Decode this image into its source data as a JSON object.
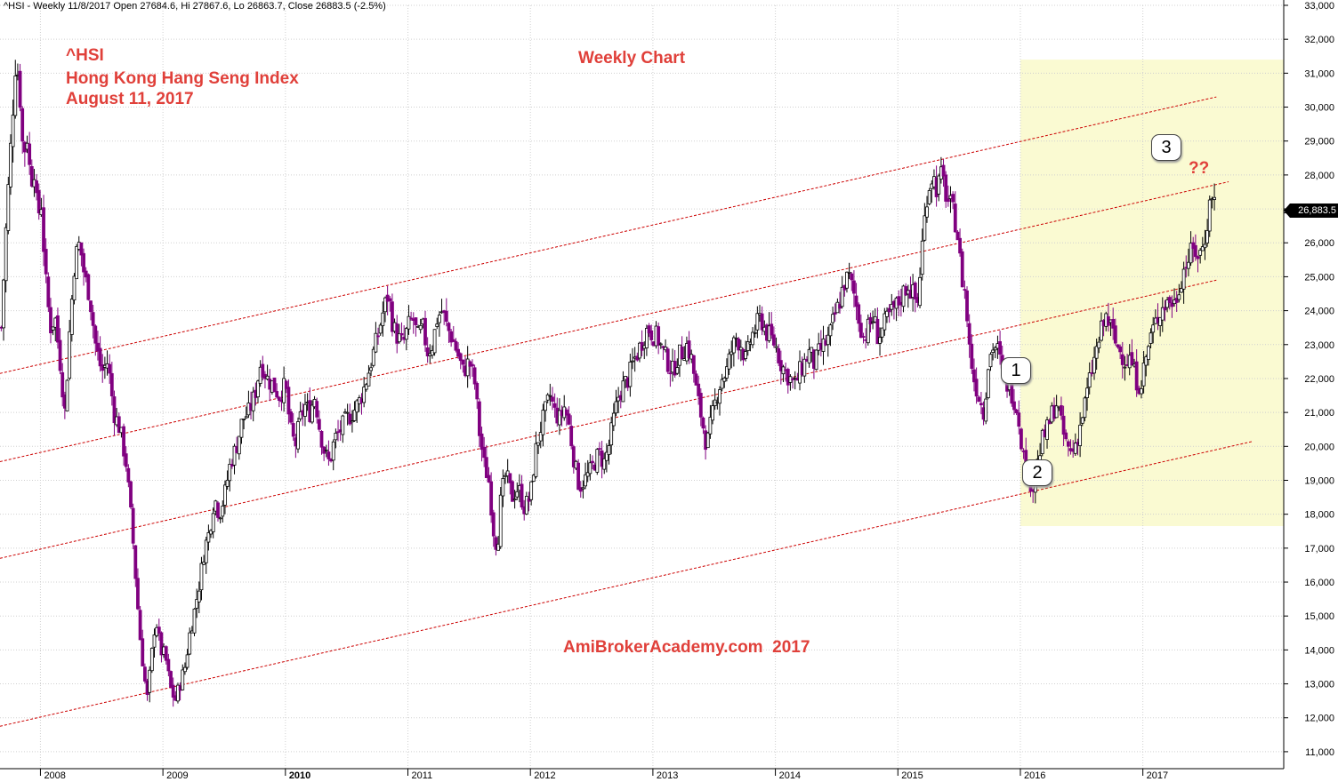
{
  "header_text": "^HSI - Weekly 11/8/2017 Open 27684.6, Hi 27867.6, Lo 26863.7, Close 26883.5 (-2.5%)",
  "title_lines": [
    "^HSI",
    "Hong Kong Hang Seng Index",
    "August 11, 2017"
  ],
  "subtitle": "Weekly Chart",
  "watermark": "AmiBrokerAcademy.com  2017",
  "last_price_label": "26,883.5",
  "question_label": "??",
  "colors": {
    "up": "#000000",
    "down": "#800080",
    "channel": "#cc0000",
    "highlight": "#fafad2",
    "title": "#e0403a"
  },
  "chart_data": {
    "type": "candlestick",
    "ylim": [
      10500,
      33000
    ],
    "xlim": [
      2007.67,
      2018.15
    ],
    "y_ticks": [
      "11,000",
      "12,000",
      "13,000",
      "14,000",
      "15,000",
      "16,000",
      "17,000",
      "18,000",
      "19,000",
      "20,000",
      "21,000",
      "22,000",
      "23,000",
      "24,000",
      "25,000",
      "26,000",
      "27,000",
      "28,000",
      "29,000",
      "30,000",
      "31,000",
      "32,000",
      "33,000"
    ],
    "y_tick_values": [
      11000,
      12000,
      13000,
      14000,
      15000,
      16000,
      17000,
      18000,
      19000,
      20000,
      21000,
      22000,
      23000,
      24000,
      25000,
      26000,
      27000,
      28000,
      29000,
      30000,
      31000,
      32000,
      33000
    ],
    "x_ticks": [
      "2008",
      "2009",
      "2010",
      "2011",
      "2012",
      "2013",
      "2014",
      "2015",
      "2016",
      "2017"
    ],
    "x_tick_values": [
      2008,
      2009,
      2010,
      2011,
      2012,
      2013,
      2014,
      2015,
      2016,
      2017
    ],
    "bold_x_tick": "2010",
    "close_path": [
      [
        2007.68,
        23500
      ],
      [
        2007.72,
        26500
      ],
      [
        2007.76,
        29000
      ],
      [
        2007.8,
        31500
      ],
      [
        2007.83,
        30500
      ],
      [
        2007.86,
        28500
      ],
      [
        2007.89,
        29200
      ],
      [
        2007.92,
        27800
      ],
      [
        2007.95,
        28200
      ],
      [
        2007.98,
        26500
      ],
      [
        2008.0,
        27600
      ],
      [
        2008.04,
        25000
      ],
      [
        2008.08,
        23500
      ],
      [
        2008.12,
        23800
      ],
      [
        2008.16,
        22500
      ],
      [
        2008.2,
        21000
      ],
      [
        2008.24,
        23500
      ],
      [
        2008.28,
        25500
      ],
      [
        2008.32,
        26000
      ],
      [
        2008.36,
        25000
      ],
      [
        2008.4,
        24500
      ],
      [
        2008.45,
        23000
      ],
      [
        2008.5,
        22200
      ],
      [
        2008.55,
        22500
      ],
      [
        2008.6,
        21000
      ],
      [
        2008.65,
        20500
      ],
      [
        2008.7,
        19500
      ],
      [
        2008.75,
        17500
      ],
      [
        2008.78,
        16000
      ],
      [
        2008.81,
        14500
      ],
      [
        2008.84,
        13500
      ],
      [
        2008.87,
        12500
      ],
      [
        2008.9,
        13500
      ],
      [
        2008.94,
        15000
      ],
      [
        2008.98,
        14000
      ],
      [
        2009.02,
        13800
      ],
      [
        2009.06,
        12900
      ],
      [
        2009.1,
        12500
      ],
      [
        2009.14,
        13000
      ],
      [
        2009.18,
        13500
      ],
      [
        2009.22,
        14500
      ],
      [
        2009.26,
        15200
      ],
      [
        2009.3,
        16000
      ],
      [
        2009.34,
        17000
      ],
      [
        2009.38,
        17500
      ],
      [
        2009.42,
        18500
      ],
      [
        2009.46,
        18000
      ],
      [
        2009.5,
        18500
      ],
      [
        2009.55,
        19500
      ],
      [
        2009.6,
        20000
      ],
      [
        2009.65,
        20800
      ],
      [
        2009.7,
        21000
      ],
      [
        2009.75,
        21500
      ],
      [
        2009.8,
        22500
      ],
      [
        2009.85,
        22000
      ],
      [
        2009.9,
        21800
      ],
      [
        2009.95,
        21500
      ],
      [
        2010.0,
        21800
      ],
      [
        2010.04,
        20500
      ],
      [
        2010.08,
        20000
      ],
      [
        2010.12,
        20800
      ],
      [
        2010.16,
        21200
      ],
      [
        2010.2,
        21000
      ],
      [
        2010.24,
        21500
      ],
      [
        2010.28,
        20500
      ],
      [
        2010.32,
        19800
      ],
      [
        2010.36,
        19500
      ],
      [
        2010.4,
        20200
      ],
      [
        2010.45,
        20500
      ],
      [
        2010.5,
        20800
      ],
      [
        2010.55,
        21000
      ],
      [
        2010.6,
        21300
      ],
      [
        2010.65,
        21800
      ],
      [
        2010.7,
        22500
      ],
      [
        2010.75,
        23200
      ],
      [
        2010.8,
        24000
      ],
      [
        2010.84,
        24500
      ],
      [
        2010.88,
        23500
      ],
      [
        2010.92,
        23200
      ],
      [
        2010.96,
        23000
      ],
      [
        2011.0,
        23500
      ],
      [
        2011.04,
        23800
      ],
      [
        2011.08,
        23200
      ],
      [
        2011.12,
        23500
      ],
      [
        2011.16,
        22800
      ],
      [
        2011.2,
        23000
      ],
      [
        2011.24,
        23800
      ],
      [
        2011.28,
        24000
      ],
      [
        2011.32,
        23500
      ],
      [
        2011.36,
        23200
      ],
      [
        2011.4,
        22800
      ],
      [
        2011.45,
        22200
      ],
      [
        2011.5,
        22500
      ],
      [
        2011.55,
        21800
      ],
      [
        2011.58,
        20500
      ],
      [
        2011.62,
        19500
      ],
      [
        2011.66,
        19000
      ],
      [
        2011.7,
        17500
      ],
      [
        2011.73,
        17000
      ],
      [
        2011.76,
        18500
      ],
      [
        2011.8,
        19200
      ],
      [
        2011.85,
        18500
      ],
      [
        2011.9,
        18800
      ],
      [
        2011.95,
        18200
      ],
      [
        2012.0,
        18500
      ],
      [
        2012.04,
        19800
      ],
      [
        2012.08,
        20500
      ],
      [
        2012.12,
        21000
      ],
      [
        2012.16,
        21500
      ],
      [
        2012.2,
        21000
      ],
      [
        2012.24,
        20800
      ],
      [
        2012.28,
        21200
      ],
      [
        2012.32,
        20500
      ],
      [
        2012.36,
        19500
      ],
      [
        2012.4,
        18800
      ],
      [
        2012.44,
        19000
      ],
      [
        2012.48,
        19200
      ],
      [
        2012.52,
        19500
      ],
      [
        2012.56,
        19800
      ],
      [
        2012.6,
        19500
      ],
      [
        2012.64,
        20000
      ],
      [
        2012.68,
        20800
      ],
      [
        2012.72,
        21500
      ],
      [
        2012.76,
        21800
      ],
      [
        2012.8,
        22000
      ],
      [
        2012.84,
        22500
      ],
      [
        2012.88,
        22800
      ],
      [
        2012.92,
        23200
      ],
      [
        2012.96,
        23500
      ],
      [
        2013.0,
        23300
      ],
      [
        2013.04,
        23200
      ],
      [
        2013.08,
        22800
      ],
      [
        2013.12,
        22500
      ],
      [
        2013.16,
        22200
      ],
      [
        2013.2,
        22600
      ],
      [
        2013.24,
        22800
      ],
      [
        2013.28,
        23000
      ],
      [
        2013.32,
        22500
      ],
      [
        2013.36,
        21500
      ],
      [
        2013.4,
        20800
      ],
      [
        2013.44,
        20000
      ],
      [
        2013.48,
        20800
      ],
      [
        2013.52,
        21500
      ],
      [
        2013.56,
        22000
      ],
      [
        2013.6,
        22200
      ],
      [
        2013.64,
        22800
      ],
      [
        2013.68,
        23200
      ],
      [
        2013.72,
        23000
      ],
      [
        2013.76,
        22500
      ],
      [
        2013.8,
        23200
      ],
      [
        2013.84,
        23500
      ],
      [
        2013.88,
        23800
      ],
      [
        2013.92,
        23400
      ],
      [
        2013.96,
        23200
      ],
      [
        2014.0,
        23000
      ],
      [
        2014.04,
        22500
      ],
      [
        2014.08,
        22200
      ],
      [
        2014.12,
        22000
      ],
      [
        2014.16,
        21800
      ],
      [
        2014.2,
        22200
      ],
      [
        2014.24,
        22500
      ],
      [
        2014.28,
        22800
      ],
      [
        2014.32,
        22400
      ],
      [
        2014.36,
        22800
      ],
      [
        2014.4,
        23000
      ],
      [
        2014.44,
        23200
      ],
      [
        2014.48,
        23800
      ],
      [
        2014.52,
        24200
      ],
      [
        2014.56,
        24800
      ],
      [
        2014.6,
        25000
      ],
      [
        2014.64,
        24500
      ],
      [
        2014.68,
        23800
      ],
      [
        2014.72,
        23200
      ],
      [
        2014.76,
        23500
      ],
      [
        2014.8,
        23800
      ],
      [
        2014.84,
        23200
      ],
      [
        2014.88,
        23500
      ],
      [
        2014.92,
        23800
      ],
      [
        2014.96,
        24000
      ],
      [
        2015.0,
        24200
      ],
      [
        2015.04,
        24500
      ],
      [
        2015.08,
        24800
      ],
      [
        2015.12,
        24500
      ],
      [
        2015.16,
        24200
      ],
      [
        2015.2,
        26000
      ],
      [
        2015.24,
        27500
      ],
      [
        2015.28,
        28000
      ],
      [
        2015.32,
        27600
      ],
      [
        2015.36,
        28000
      ],
      [
        2015.4,
        27300
      ],
      [
        2015.44,
        27000
      ],
      [
        2015.48,
        26500
      ],
      [
        2015.52,
        25000
      ],
      [
        2015.55,
        24500
      ],
      [
        2015.58,
        23000
      ],
      [
        2015.62,
        22000
      ],
      [
        2015.66,
        21500
      ],
      [
        2015.7,
        21000
      ],
      [
        2015.74,
        22500
      ],
      [
        2015.78,
        23000
      ],
      [
        2015.82,
        22800
      ],
      [
        2015.86,
        22000
      ],
      [
        2015.9,
        21800
      ],
      [
        2015.94,
        21500
      ],
      [
        2015.98,
        21000
      ],
      [
        2016.02,
        19800
      ],
      [
        2016.06,
        19200
      ],
      [
        2016.1,
        18800
      ],
      [
        2016.14,
        19500
      ],
      [
        2016.18,
        20200
      ],
      [
        2016.22,
        20500
      ],
      [
        2016.26,
        21000
      ],
      [
        2016.3,
        21300
      ],
      [
        2016.34,
        20500
      ],
      [
        2016.38,
        20000
      ],
      [
        2016.42,
        19800
      ],
      [
        2016.46,
        20200
      ],
      [
        2016.5,
        20800
      ],
      [
        2016.54,
        21500
      ],
      [
        2016.58,
        22200
      ],
      [
        2016.62,
        22800
      ],
      [
        2016.66,
        23400
      ],
      [
        2016.7,
        23800
      ],
      [
        2016.74,
        23500
      ],
      [
        2016.78,
        23000
      ],
      [
        2016.82,
        22800
      ],
      [
        2016.86,
        22500
      ],
      [
        2016.9,
        22600
      ],
      [
        2016.94,
        22000
      ],
      [
        2016.98,
        21800
      ],
      [
        2017.02,
        22500
      ],
      [
        2017.06,
        23200
      ],
      [
        2017.1,
        23600
      ],
      [
        2017.14,
        24000
      ],
      [
        2017.18,
        24200
      ],
      [
        2017.22,
        24300
      ],
      [
        2017.26,
        24200
      ],
      [
        2017.3,
        24800
      ],
      [
        2017.34,
        25300
      ],
      [
        2017.38,
        25600
      ],
      [
        2017.42,
        25800
      ],
      [
        2017.46,
        25600
      ],
      [
        2017.5,
        26000
      ],
      [
        2017.54,
        27000
      ],
      [
        2017.57,
        27600
      ],
      [
        2017.6,
        26883
      ]
    ],
    "channel_lines": [
      {
        "x": [
          2007.67,
          2017.6
        ],
        "y": [
          22150,
          30300
        ]
      },
      {
        "x": [
          2007.67,
          2017.7
        ],
        "y": [
          19550,
          27800
        ]
      },
      {
        "x": [
          2007.67,
          2017.6
        ],
        "y": [
          16700,
          24900
        ]
      },
      {
        "x": [
          2007.67,
          2017.9
        ],
        "y": [
          11750,
          20150
        ]
      }
    ],
    "highlight_region": {
      "x": [
        2016.0,
        2018.15
      ],
      "y": [
        17650,
        31400
      ]
    },
    "wave_labels": [
      {
        "label": "1",
        "x": 2016.27,
        "y": 22000
      },
      {
        "label": "2",
        "x": 2016.45,
        "y": 18800
      },
      {
        "label": "3",
        "x": 2017.57,
        "y": 28850
      }
    ]
  }
}
